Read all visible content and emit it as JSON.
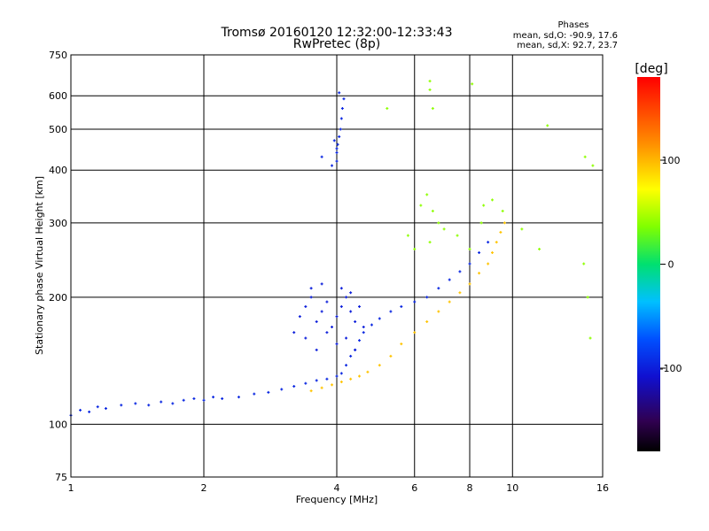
{
  "header": {
    "title_line1": "Tromsø 20160120 12:32:00-12:33:43",
    "title_line2": "RwPretec (8p)"
  },
  "stats": {
    "heading": "Phases",
    "line_o": "mean, sd,O: -90.9, 17.6",
    "line_x": "mean, sd,X:  92.7, 23.7"
  },
  "colorbar": {
    "unit": "[deg]",
    "tick_labels": [
      "100",
      "0",
      "-100"
    ],
    "tick_values": [
      100,
      0,
      -100
    ],
    "range": [
      -180,
      180
    ]
  },
  "chart_data": {
    "type": "scatter",
    "xlabel": "Frequency [MHz]",
    "ylabel": "Stationary phase Virtual Height [km]",
    "xscale": "log",
    "yscale": "log",
    "xlim": [
      1,
      16
    ],
    "ylim": [
      75,
      750
    ],
    "x_ticks": [
      1,
      2,
      4,
      6,
      8,
      10,
      16
    ],
    "x_tick_labels": [
      "1",
      "2",
      "4",
      "6",
      "8",
      "10",
      "16"
    ],
    "y_ticks": [
      75,
      100,
      200,
      300,
      400,
      500,
      600,
      750
    ],
    "y_tick_labels": [
      "75",
      "100",
      "200",
      "300",
      "400",
      "500",
      "600",
      "750"
    ],
    "grid": true,
    "color_encodes": "phase [deg]",
    "point_groups": [
      {
        "description": "F-layer O trace (blue)",
        "phase": -95,
        "points": [
          [
            1.0,
            105
          ],
          [
            1.05,
            108
          ],
          [
            1.1,
            107
          ],
          [
            1.15,
            110
          ],
          [
            1.2,
            109
          ],
          [
            1.3,
            111
          ],
          [
            1.4,
            112
          ],
          [
            1.5,
            111
          ],
          [
            1.6,
            113
          ],
          [
            1.7,
            112
          ],
          [
            1.8,
            114
          ],
          [
            1.9,
            115
          ],
          [
            2.0,
            114
          ],
          [
            2.1,
            116
          ],
          [
            2.2,
            115
          ],
          [
            2.4,
            116
          ],
          [
            2.6,
            118
          ],
          [
            2.8,
            119
          ],
          [
            3.0,
            121
          ],
          [
            3.2,
            123
          ],
          [
            3.4,
            125
          ],
          [
            3.6,
            127
          ],
          [
            3.8,
            128
          ],
          [
            4.0,
            130
          ],
          [
            4.1,
            132
          ],
          [
            4.2,
            138
          ],
          [
            4.3,
            145
          ],
          [
            4.4,
            150
          ],
          [
            4.5,
            158
          ],
          [
            4.6,
            165
          ],
          [
            4.8,
            172
          ],
          [
            5.0,
            178
          ],
          [
            5.3,
            185
          ],
          [
            5.6,
            190
          ],
          [
            6.0,
            195
          ],
          [
            6.4,
            200
          ],
          [
            6.8,
            210
          ],
          [
            7.2,
            220
          ],
          [
            7.6,
            230
          ],
          [
            8.0,
            240
          ],
          [
            8.4,
            255
          ],
          [
            8.8,
            270
          ]
        ]
      },
      {
        "description": "Spread-F cloud near 3.3-4.6 MHz (blue)",
        "phase": -100,
        "points": [
          [
            3.2,
            165
          ],
          [
            3.3,
            180
          ],
          [
            3.4,
            190
          ],
          [
            3.5,
            200
          ],
          [
            3.6,
            175
          ],
          [
            3.7,
            185
          ],
          [
            3.8,
            195
          ],
          [
            3.9,
            170
          ],
          [
            4.0,
            180
          ],
          [
            4.1,
            190
          ],
          [
            4.2,
            200
          ],
          [
            4.3,
            185
          ],
          [
            4.4,
            175
          ],
          [
            4.5,
            190
          ],
          [
            4.6,
            170
          ],
          [
            3.4,
            160
          ],
          [
            3.6,
            150
          ],
          [
            3.8,
            165
          ],
          [
            4.0,
            155
          ],
          [
            4.2,
            160
          ],
          [
            4.4,
            150
          ],
          [
            3.5,
            210
          ],
          [
            3.7,
            215
          ],
          [
            4.1,
            210
          ],
          [
            4.3,
            205
          ]
        ]
      },
      {
        "description": "High echoes near 4 MHz (blue)",
        "phase": -95,
        "points": [
          [
            4.0,
            420
          ],
          [
            4.0,
            440
          ],
          [
            4.02,
            460
          ],
          [
            4.05,
            480
          ],
          [
            4.08,
            500
          ],
          [
            4.1,
            530
          ],
          [
            4.12,
            560
          ],
          [
            4.15,
            590
          ],
          [
            4.05,
            610
          ],
          [
            3.95,
            470
          ],
          [
            4.0,
            450
          ],
          [
            3.7,
            430
          ],
          [
            3.9,
            410
          ]
        ]
      },
      {
        "description": "X trace (yellow/orange)",
        "phase": 95,
        "points": [
          [
            3.5,
            120
          ],
          [
            3.7,
            122
          ],
          [
            3.9,
            124
          ],
          [
            4.1,
            126
          ],
          [
            4.3,
            128
          ],
          [
            4.5,
            130
          ],
          [
            4.7,
            133
          ],
          [
            5.0,
            138
          ],
          [
            5.3,
            145
          ],
          [
            5.6,
            155
          ],
          [
            6.0,
            165
          ],
          [
            6.4,
            175
          ],
          [
            6.8,
            185
          ],
          [
            7.2,
            195
          ],
          [
            7.6,
            205
          ],
          [
            8.0,
            215
          ],
          [
            8.4,
            228
          ],
          [
            8.8,
            240
          ],
          [
            9.0,
            255
          ],
          [
            9.2,
            270
          ],
          [
            9.4,
            285
          ],
          [
            9.6,
            300
          ]
        ]
      },
      {
        "description": "Scattered points (mixed phases)",
        "phase": 40,
        "points": [
          [
            6.2,
            330
          ],
          [
            6.4,
            350
          ],
          [
            6.6,
            320
          ],
          [
            6.8,
            300
          ],
          [
            7.0,
            290
          ],
          [
            5.8,
            280
          ],
          [
            6.0,
            260
          ],
          [
            6.5,
            270
          ],
          [
            7.5,
            280
          ],
          [
            8.0,
            260
          ],
          [
            8.5,
            300
          ],
          [
            9.5,
            320
          ],
          [
            10.5,
            290
          ],
          [
            11.5,
            260
          ],
          [
            14.5,
            240
          ],
          [
            14.8,
            200
          ],
          [
            15.0,
            160
          ],
          [
            14.6,
            430
          ],
          [
            15.2,
            410
          ],
          [
            12.0,
            510
          ],
          [
            5.2,
            560
          ],
          [
            6.5,
            620
          ],
          [
            6.5,
            650
          ],
          [
            8.1,
            640
          ],
          [
            6.6,
            560
          ],
          [
            9.0,
            340
          ],
          [
            8.6,
            330
          ]
        ]
      }
    ]
  }
}
